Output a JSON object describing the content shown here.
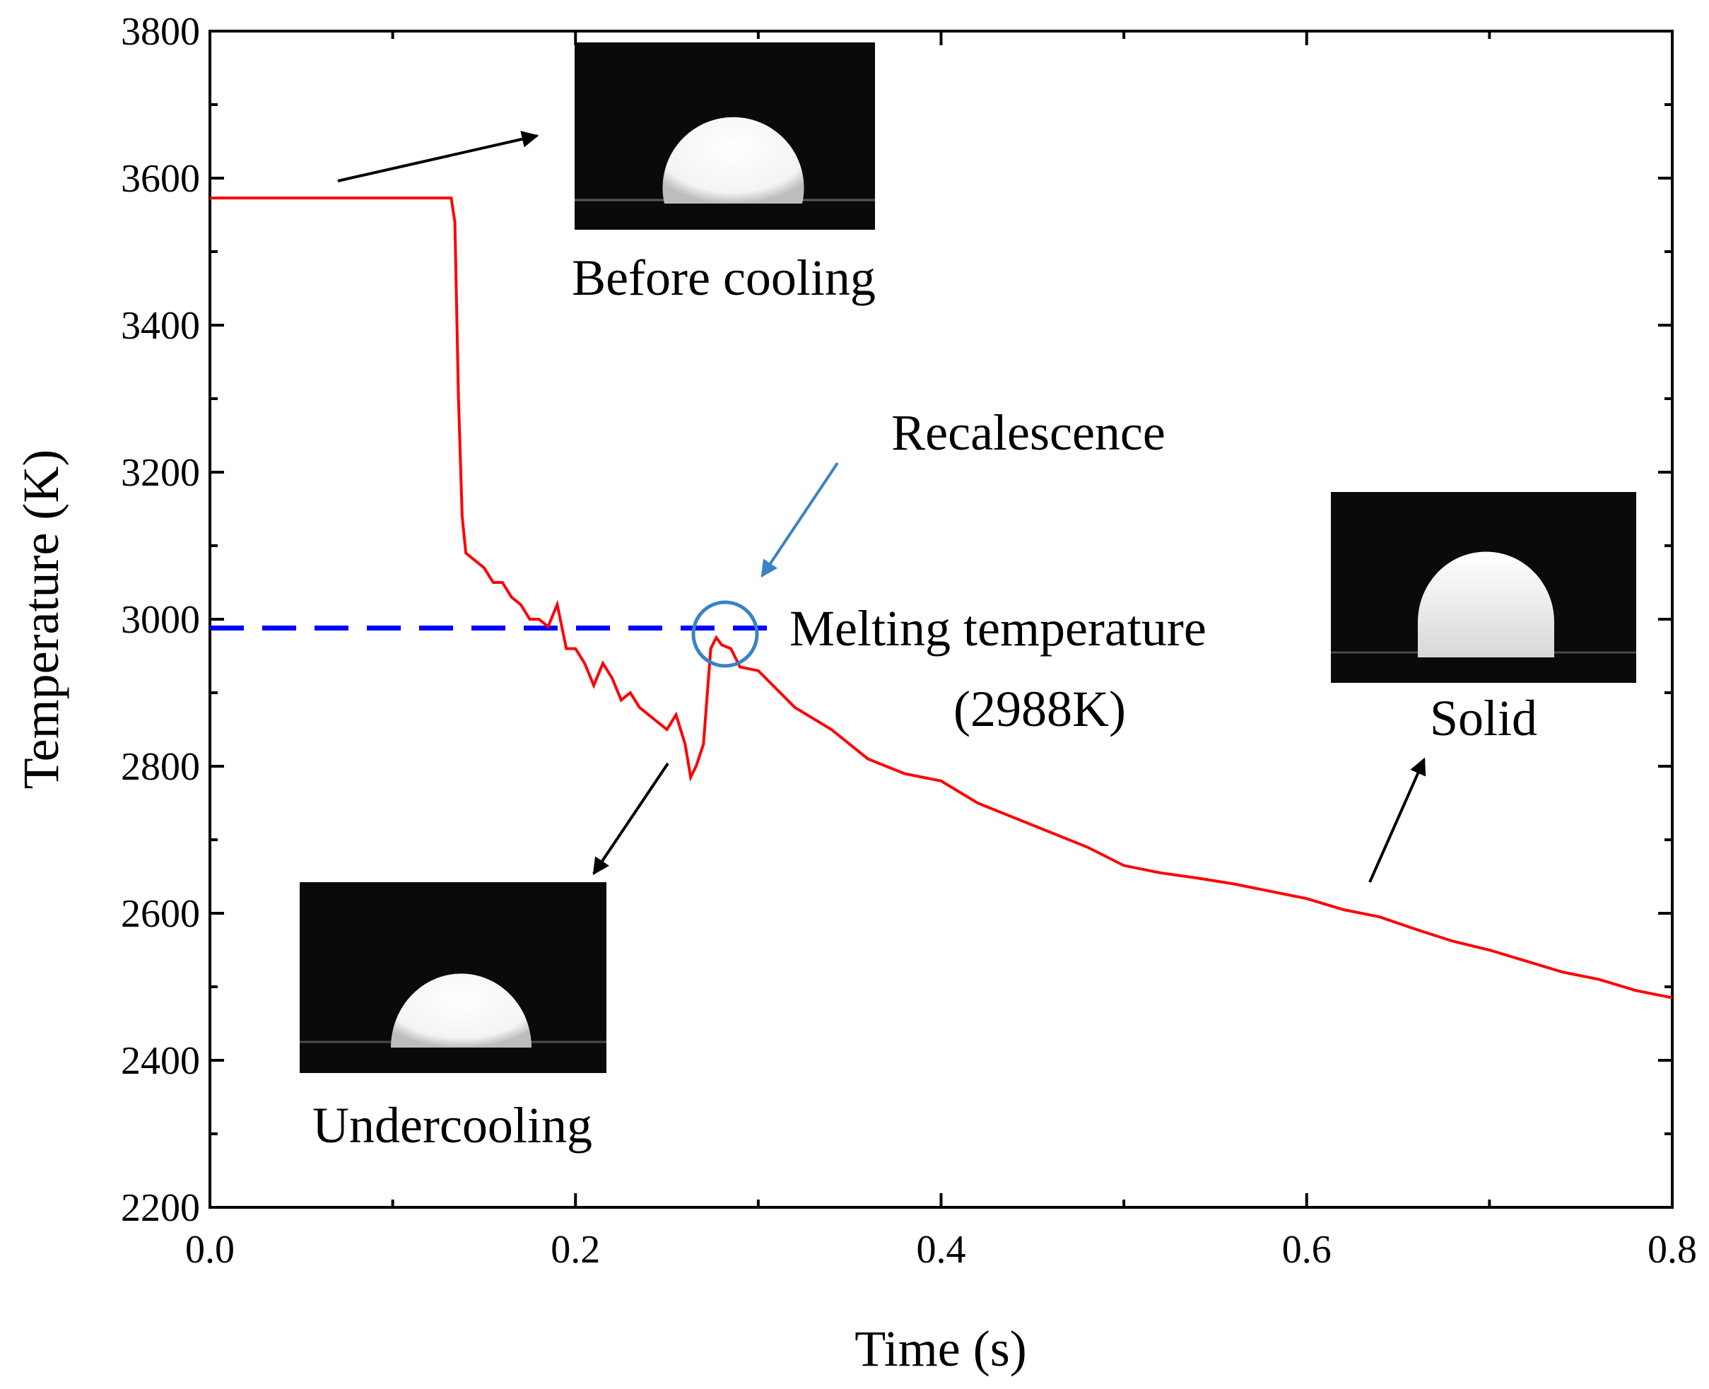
{
  "chart_data": {
    "type": "line",
    "title": "",
    "xlabel": "Time (s)",
    "ylabel": "Temperature (K)",
    "xlim": [
      0.0,
      0.8
    ],
    "ylim": [
      2200,
      3800
    ],
    "x_ticks": [
      "0.0",
      "0.2",
      "0.4",
      "0.6",
      "0.8"
    ],
    "y_ticks": [
      "2200",
      "2400",
      "2600",
      "2800",
      "3000",
      "3200",
      "3400",
      "3600",
      "3800"
    ],
    "grid": false,
    "series": [
      {
        "name": "Temperature",
        "color": "#ff0000",
        "x": [
          0.0,
          0.05,
          0.1,
          0.132,
          0.134,
          0.136,
          0.138,
          0.14,
          0.145,
          0.15,
          0.155,
          0.16,
          0.165,
          0.17,
          0.175,
          0.18,
          0.185,
          0.19,
          0.195,
          0.2,
          0.205,
          0.21,
          0.215,
          0.22,
          0.225,
          0.23,
          0.235,
          0.24,
          0.245,
          0.25,
          0.255,
          0.26,
          0.263,
          0.266,
          0.27,
          0.274,
          0.277,
          0.28,
          0.285,
          0.29,
          0.3,
          0.32,
          0.34,
          0.36,
          0.38,
          0.4,
          0.42,
          0.44,
          0.46,
          0.48,
          0.5,
          0.52,
          0.54,
          0.56,
          0.58,
          0.6,
          0.62,
          0.64,
          0.66,
          0.68,
          0.7,
          0.72,
          0.74,
          0.76,
          0.78,
          0.8
        ],
        "y": [
          3573,
          3573,
          3573,
          3573,
          3540,
          3300,
          3140,
          3090,
          3080,
          3070,
          3050,
          3050,
          3030,
          3020,
          3000,
          3000,
          2990,
          3020,
          2960,
          2960,
          2940,
          2910,
          2940,
          2920,
          2890,
          2900,
          2880,
          2870,
          2860,
          2850,
          2870,
          2830,
          2785,
          2800,
          2830,
          2960,
          2975,
          2965,
          2960,
          2935,
          2930,
          2880,
          2850,
          2810,
          2790,
          2780,
          2750,
          2730,
          2710,
          2690,
          2665,
          2655,
          2648,
          2640,
          2630,
          2620,
          2605,
          2595,
          2578,
          2562,
          2550,
          2535,
          2520,
          2510,
          2495,
          2485
        ]
      },
      {
        "name": "Melting temperature",
        "color": "#0000ff",
        "style": "dashed",
        "x": [
          0.0,
          0.31
        ],
        "y": [
          2988,
          2988
        ]
      }
    ],
    "annotations": [
      {
        "id": "recalescence",
        "text": "Recalescence"
      },
      {
        "id": "melting",
        "text": "Melting temperature",
        "text2": "(2988K)"
      },
      {
        "id": "before",
        "text": "Before cooling"
      },
      {
        "id": "undercooling",
        "text": "Undercooling"
      },
      {
        "id": "solid",
        "text": "Solid"
      }
    ],
    "colors": {
      "curve": "#ff0000",
      "melting_line": "#0000ff",
      "circle": "#3a82c4",
      "arrow_black": "#000000",
      "arrow_blue": "#3a82c4"
    }
  }
}
